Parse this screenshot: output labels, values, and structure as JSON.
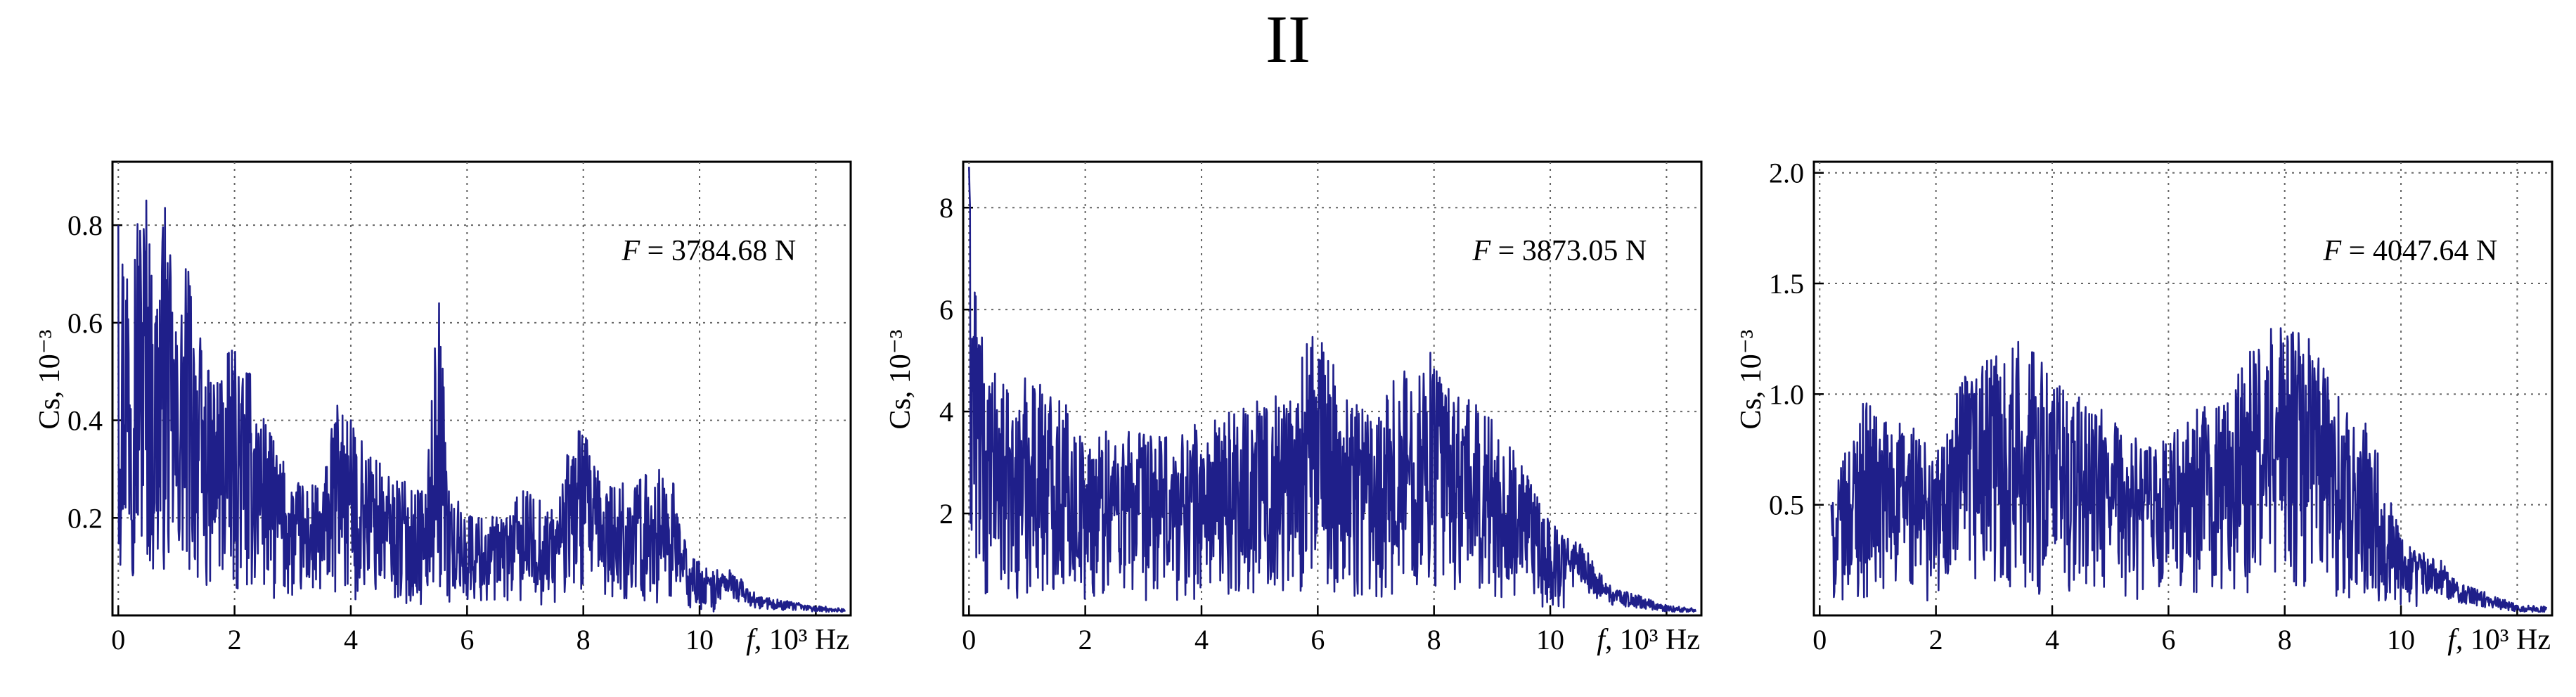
{
  "figure_title": "II",
  "series_color": "#1f1f8a",
  "chart_data": [
    {
      "type": "line",
      "annotation": {
        "symbol": "F",
        "text": " = 3784.68 N"
      },
      "xlabel": {
        "symbol": "f,",
        "text": " 10³ Hz"
      },
      "ylabel": "Cs, 10⁻³",
      "xlim": [
        -0.1,
        12.6
      ],
      "ylim": [
        0,
        0.93
      ],
      "xticks": [
        0,
        2,
        4,
        6,
        8,
        10
      ],
      "xtick_labels": [
        "0",
        "2",
        "4",
        "6",
        "8",
        "10"
      ],
      "yticks": [
        0.2,
        0.4,
        0.6,
        0.8
      ],
      "ytick_labels": [
        "0.2",
        "0.4",
        "0.6",
        "0.8"
      ],
      "grid": true,
      "series": [
        {
          "x": [
            0,
            0.5,
            0.6,
            0.8,
            1.0,
            1.2,
            1.5,
            2.0,
            2.3,
            2.6,
            3.0,
            3.5,
            3.8,
            4.0,
            4.3,
            4.6,
            5.0,
            5.3,
            5.5,
            5.7,
            6.0,
            6.5,
            7.0,
            7.5,
            7.9,
            8.3,
            8.8,
            9.2,
            9.5,
            9.8,
            10.2,
            10.5,
            11.0,
            11.5,
            12.0,
            12.5
          ],
          "y": [
            0.8,
            0.9,
            0.65,
            0.86,
            0.6,
            0.75,
            0.5,
            0.55,
            0.5,
            0.38,
            0.28,
            0.27,
            0.47,
            0.4,
            0.35,
            0.3,
            0.27,
            0.26,
            0.7,
            0.25,
            0.22,
            0.2,
            0.26,
            0.22,
            0.42,
            0.28,
            0.27,
            0.3,
            0.3,
            0.13,
            0.09,
            0.1,
            0.04,
            0.03,
            0.02,
            0.015
          ]
        }
      ]
    },
    {
      "type": "line",
      "annotation": {
        "symbol": "F",
        "text": " = 3873.05 N"
      },
      "xlabel": {
        "symbol": "f,",
        "text": " 10³ Hz"
      },
      "ylabel": "Cs, 10⁻³",
      "xlim": [
        -0.1,
        12.6
      ],
      "ylim": [
        0,
        8.9
      ],
      "xticks": [
        0,
        2,
        4,
        6,
        8,
        10
      ],
      "xtick_labels": [
        "0",
        "2",
        "4",
        "6",
        "8",
        "10"
      ],
      "yticks": [
        2,
        4,
        6,
        8
      ],
      "ytick_labels": [
        "2",
        "4",
        "6",
        "8"
      ],
      "grid": true,
      "series": [
        {
          "x": [
            0,
            0.1,
            0.3,
            0.5,
            0.8,
            1.0,
            1.5,
            2.0,
            2.5,
            3.0,
            3.5,
            3.8,
            4.0,
            4.5,
            5.0,
            5.5,
            5.9,
            6.0,
            6.5,
            7.0,
            7.5,
            7.9,
            8.0,
            8.5,
            9.0,
            9.5,
            10.0,
            10.5,
            11.0,
            11.5,
            12.0,
            12.5
          ],
          "y": [
            8.8,
            7.0,
            4.5,
            4.9,
            4.0,
            5.0,
            4.5,
            3.5,
            3.9,
            3.6,
            3.5,
            3.9,
            3.7,
            4.1,
            4.4,
            4.5,
            5.6,
            5.5,
            4.5,
            4.3,
            4.9,
            5.3,
            5.0,
            4.3,
            4.0,
            3.0,
            1.8,
            1.5,
            0.6,
            0.4,
            0.2,
            0.15
          ]
        }
      ]
    },
    {
      "type": "line",
      "annotation": {
        "symbol": "F",
        "text": " = 4047.64 N"
      },
      "xlabel": {
        "symbol": "f,",
        "text": " 10³ Hz"
      },
      "ylabel": "Cs, 10⁻³",
      "xlim": [
        -0.1,
        12.6
      ],
      "ylim": [
        0,
        2.05
      ],
      "xticks": [
        0,
        2,
        4,
        6,
        8,
        10
      ],
      "xtick_labels": [
        "0",
        "2",
        "4",
        "6",
        "8",
        "10"
      ],
      "yticks": [
        0.5,
        1.0,
        1.5,
        2.0
      ],
      "ytick_labels": [
        "0.5",
        "1.0",
        "1.5",
        "2.0"
      ],
      "grid": true,
      "series": [
        {
          "x": [
            0.2,
            0.5,
            0.8,
            1.0,
            1.5,
            2.0,
            2.5,
            3.0,
            3.5,
            4.0,
            4.5,
            5.0,
            5.5,
            6.0,
            6.5,
            7.0,
            7.5,
            8.0,
            8.5,
            9.0,
            9.5,
            10.0,
            10.3,
            10.7,
            11.0,
            11.5,
            12.0,
            12.5
          ],
          "y": [
            0.5,
            0.8,
            1.0,
            0.9,
            0.9,
            0.75,
            1.1,
            1.2,
            1.25,
            1.1,
            1.0,
            0.9,
            0.8,
            0.8,
            0.95,
            1.0,
            1.25,
            1.35,
            1.25,
            0.95,
            0.85,
            0.35,
            0.3,
            0.25,
            0.15,
            0.1,
            0.05,
            0.04
          ]
        }
      ]
    }
  ]
}
